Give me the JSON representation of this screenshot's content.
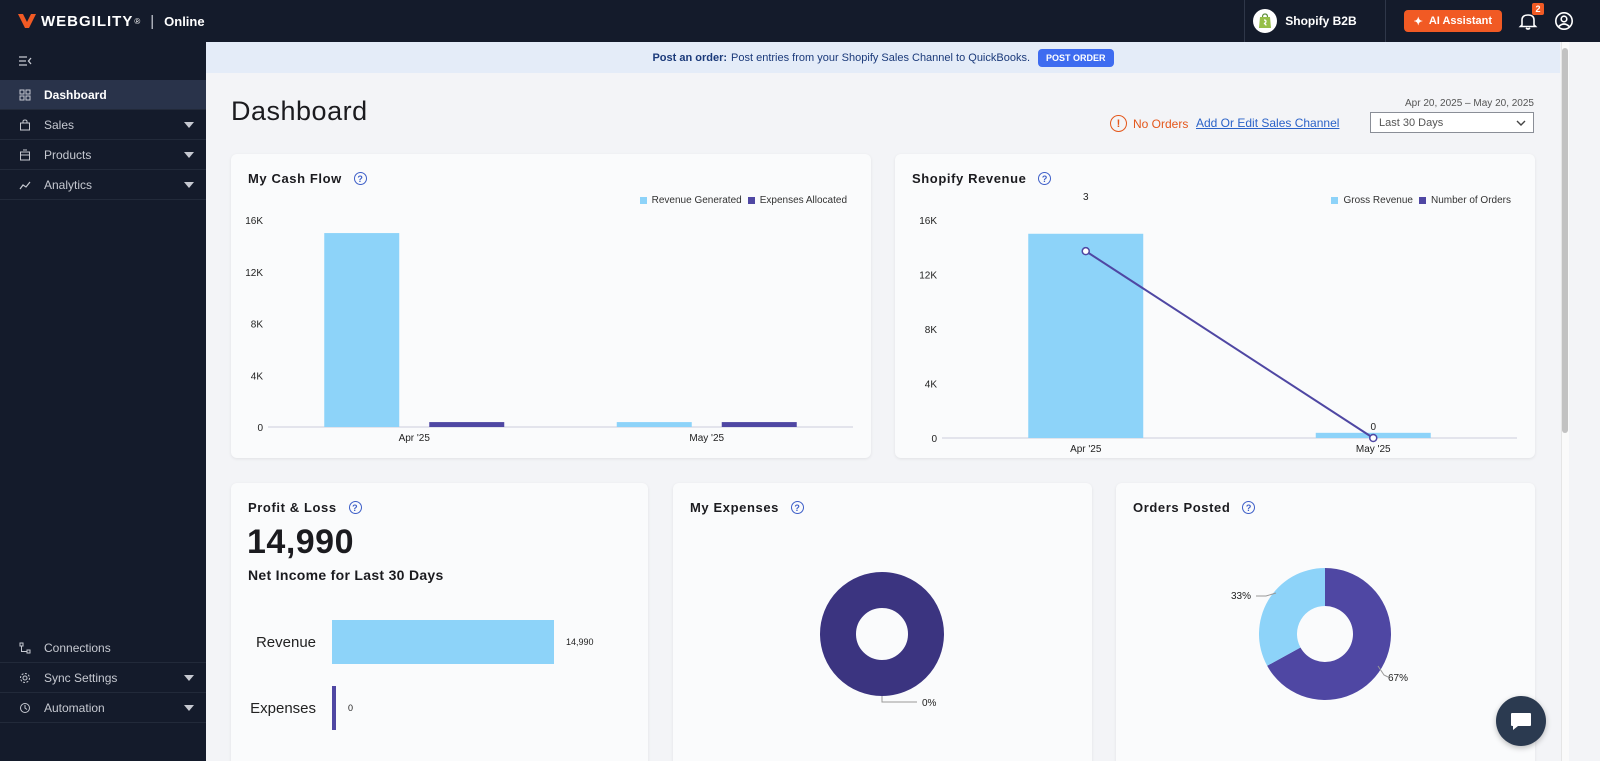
{
  "brand": {
    "name": "WEBGILITY",
    "registered": "®",
    "env": "Online"
  },
  "header": {
    "store_name": "Shopify B2B",
    "ai_button_label": "AI Assistant",
    "notifications_count": "2"
  },
  "sidebar": {
    "items": [
      {
        "label": "Dashboard",
        "icon": "grid-icon",
        "active": true,
        "has_caret": false
      },
      {
        "label": "Sales",
        "icon": "bag-icon",
        "active": false,
        "has_caret": true
      },
      {
        "label": "Products",
        "icon": "box-icon",
        "active": false,
        "has_caret": true
      },
      {
        "label": "Analytics",
        "icon": "trend-icon",
        "active": false,
        "has_caret": true
      }
    ],
    "bottom_items": [
      {
        "label": "Connections",
        "icon": "connections-icon",
        "has_caret": false
      },
      {
        "label": "Sync Settings",
        "icon": "gear-icon",
        "has_caret": true
      },
      {
        "label": "Automation",
        "icon": "automation-icon",
        "has_caret": true
      }
    ]
  },
  "banner": {
    "bold": "Post an order:",
    "text": "Post entries from your Shopify Sales Channel to QuickBooks.",
    "button": "POST ORDER"
  },
  "page": {
    "title": "Dashboard",
    "date_range": "Apr 20, 2025 – May 20, 2025",
    "no_orders": "No Orders",
    "edit_link": "Add Or Edit Sales Channel",
    "range_select": "Last 30 Days"
  },
  "cards": {
    "cash_flow": {
      "title": "My Cash Flow"
    },
    "shopify_revenue": {
      "title": "Shopify Revenue"
    },
    "profit_loss": {
      "title": "Profit & Loss",
      "big_value": "14,990",
      "subtitle": "Net Income for Last 30 Days"
    },
    "expenses": {
      "title": "My Expenses"
    },
    "orders_posted": {
      "title": "Orders Posted"
    }
  },
  "colors": {
    "light_blue": "#8dd3f9",
    "dark_purple": "#4f47a3",
    "navy": "#141b2b",
    "accent_orange": "#f15a24"
  },
  "chart_data": [
    {
      "id": "cash_flow",
      "type": "bar",
      "categories": [
        "Apr '25",
        "May '25"
      ],
      "series": [
        {
          "name": "Revenue Generated",
          "values": [
            14990,
            380
          ],
          "color": "#8dd3f9"
        },
        {
          "name": "Expenses Allocated",
          "values": [
            380,
            380
          ],
          "color": "#4f47a3"
        }
      ],
      "yticks": [
        "0",
        "4K",
        "8K",
        "12K",
        "16K"
      ],
      "ylim": [
        0,
        16000
      ],
      "legend": "top-right",
      "grid": false
    },
    {
      "id": "shopify_revenue",
      "type": "bar",
      "categories": [
        "Apr '25",
        "May '25"
      ],
      "series": [
        {
          "name": "Gross Revenue",
          "values": [
            14990,
            380
          ],
          "color": "#8dd3f9",
          "kind": "bar"
        },
        {
          "name": "Number of Orders",
          "values": [
            3,
            0
          ],
          "color": "#4f47a3",
          "kind": "line"
        }
      ],
      "point_labels": [
        "3",
        "0"
      ],
      "yticks": [
        "0",
        "4K",
        "8K",
        "12K",
        "16K"
      ],
      "ylim": [
        0,
        16000
      ],
      "line_ylim": [
        0,
        3.5
      ],
      "legend": "top-right",
      "grid": false
    },
    {
      "id": "profit_loss",
      "type": "bar",
      "orientation": "horizontal",
      "categories": [
        "Revenue",
        "Expenses"
      ],
      "values": [
        14990,
        0
      ],
      "value_labels": [
        "14,990",
        "0"
      ],
      "colors": [
        "#8dd3f9",
        "#4f47a3"
      ]
    },
    {
      "id": "expenses",
      "type": "pie",
      "donut": true,
      "slices": [
        {
          "label": "0%",
          "value": 100,
          "color": "#3b3480"
        }
      ]
    },
    {
      "id": "orders_posted",
      "type": "pie",
      "donut": true,
      "slices": [
        {
          "label": "67%",
          "value": 67,
          "color": "#4f47a3"
        },
        {
          "label": "33%",
          "value": 33,
          "color": "#8dd3f9"
        }
      ]
    }
  ]
}
